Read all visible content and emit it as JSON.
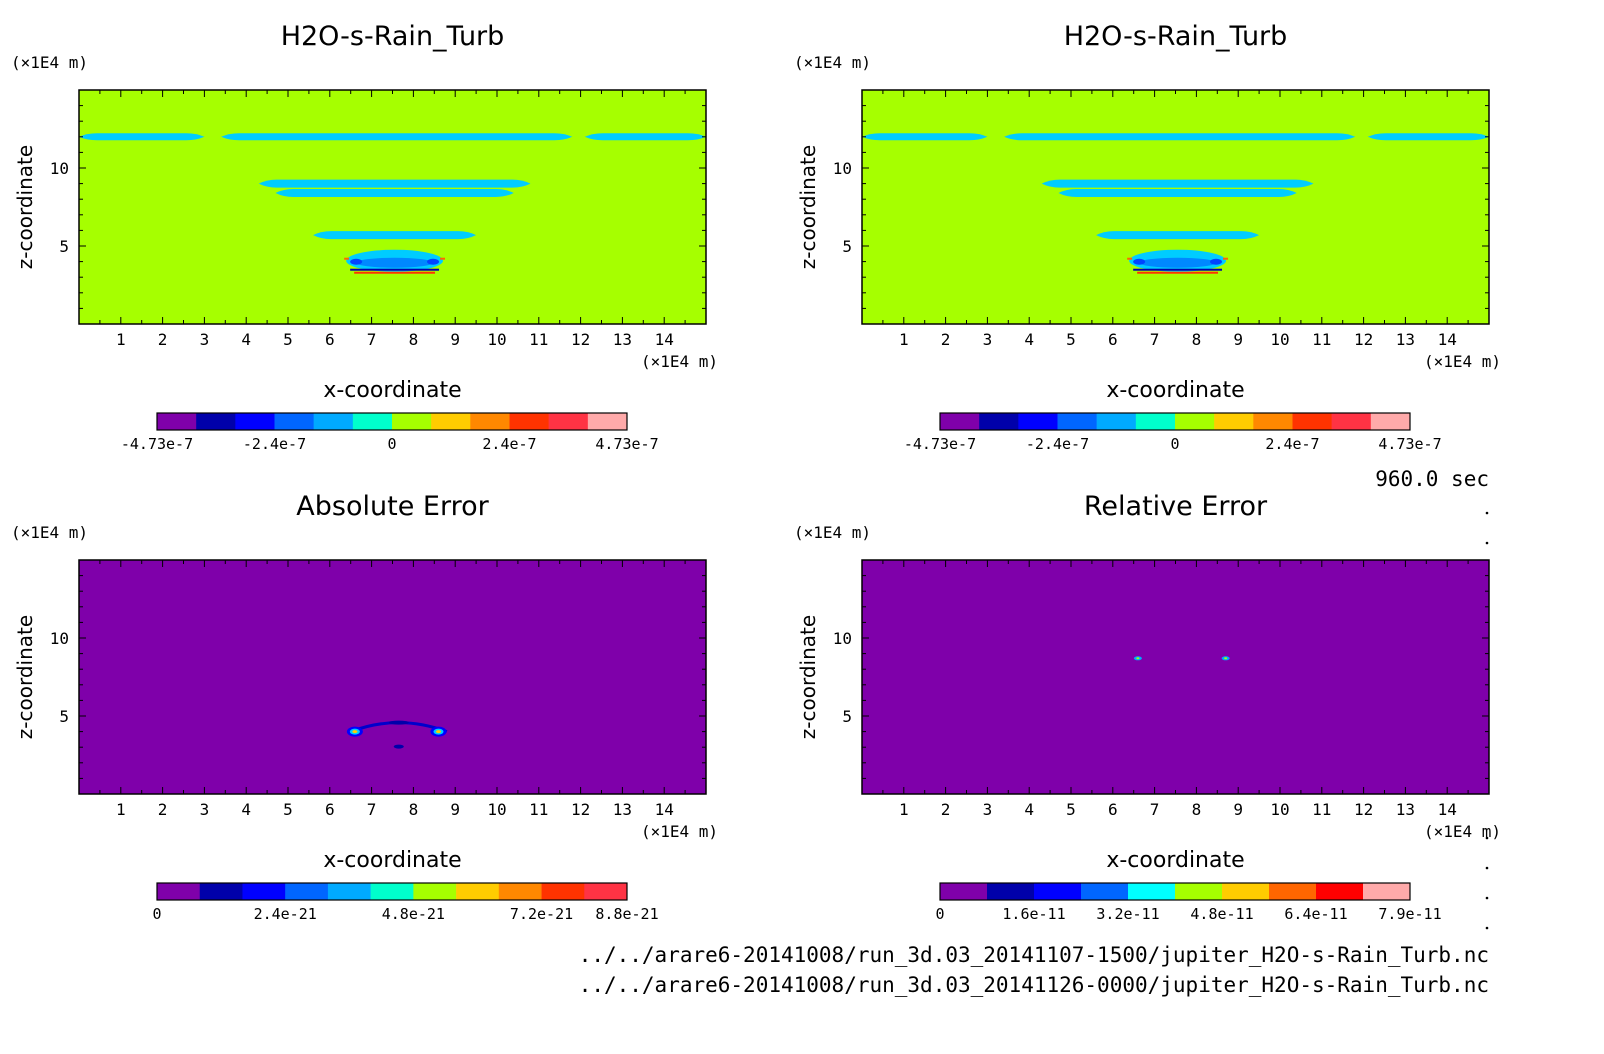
{
  "time_label": "960.0 sec",
  "file_paths": [
    "../../arare6-20141008/run_3d.03_20141107-1500/jupiter_H2O-s-Rain_Turb.nc",
    "../../arare6-20141008/run_3d.03_20141126-0000/jupiter_H2O-s-Rain_Turb.nc"
  ],
  "colors": {
    "background_field": "#a6ff00",
    "cyan_band": "#00ccff",
    "error_background": "#7f00aa"
  },
  "chart_data": [
    {
      "type": "heatmap",
      "title": "H2O-s-Rain_Turb",
      "xlabel": "x-coordinate",
      "ylabel": "z-coordinate",
      "xunit": "(×1E4 m)",
      "yunit": "(×1E4 m)",
      "xlim": [
        0,
        15
      ],
      "ylim": [
        0,
        15
      ],
      "xticks": [
        "1",
        "2",
        "3",
        "4",
        "5",
        "6",
        "7",
        "8",
        "9",
        "10",
        "11",
        "12",
        "13",
        "14"
      ],
      "yticks": [
        "5",
        "10"
      ],
      "colorbar": {
        "colors": [
          "#7f00aa",
          "#0000aa",
          "#0000ff",
          "#0066ff",
          "#00aaff",
          "#00ffcc",
          "#a6ff00",
          "#ffcc00",
          "#ff8800",
          "#ff3300",
          "#ff3344",
          "#ffaaaa"
        ],
        "tick_labels": [
          "-4.73e-7",
          "-2.4e-7",
          "0",
          "2.4e-7",
          "4.73e-7"
        ],
        "tick_positions": [
          0,
          3,
          6,
          9,
          12
        ]
      },
      "features": [
        {
          "z": 12.0,
          "x_start": 0.0,
          "x_end": 3.0,
          "value": "negative"
        },
        {
          "z": 12.0,
          "x_start": 3.4,
          "x_end": 11.8,
          "value": "negative"
        },
        {
          "z": 12.0,
          "x_start": 12.1,
          "x_end": 15.0,
          "value": "negative"
        },
        {
          "z": 9.0,
          "x_start": 4.3,
          "x_end": 10.8,
          "value": "negative"
        },
        {
          "z": 8.4,
          "x_start": 4.7,
          "x_end": 10.4,
          "value": "negative"
        },
        {
          "z": 5.7,
          "x_start": 5.6,
          "x_end": 9.5,
          "value": "negative"
        },
        {
          "z": 3.8,
          "x_start": 6.2,
          "x_end": 8.9,
          "value": "mixed"
        }
      ]
    },
    {
      "type": "heatmap",
      "title": "H2O-s-Rain_Turb",
      "xlabel": "x-coordinate",
      "ylabel": "z-coordinate",
      "xunit": "(×1E4 m)",
      "yunit": "(×1E4 m)",
      "xlim": [
        0,
        15
      ],
      "ylim": [
        0,
        15
      ],
      "xticks": [
        "1",
        "2",
        "3",
        "4",
        "5",
        "6",
        "7",
        "8",
        "9",
        "10",
        "11",
        "12",
        "13",
        "14"
      ],
      "yticks": [
        "5",
        "10"
      ],
      "colorbar": {
        "colors": [
          "#7f00aa",
          "#0000aa",
          "#0000ff",
          "#0066ff",
          "#00aaff",
          "#00ffcc",
          "#a6ff00",
          "#ffcc00",
          "#ff8800",
          "#ff3300",
          "#ff3344",
          "#ffaaaa"
        ],
        "tick_labels": [
          "-4.73e-7",
          "-2.4e-7",
          "0",
          "2.4e-7",
          "4.73e-7"
        ],
        "tick_positions": [
          0,
          3,
          6,
          9,
          12
        ]
      },
      "features": [
        {
          "z": 12.0,
          "x_start": 0.0,
          "x_end": 3.0,
          "value": "negative"
        },
        {
          "z": 12.0,
          "x_start": 3.4,
          "x_end": 11.8,
          "value": "negative"
        },
        {
          "z": 12.0,
          "x_start": 12.1,
          "x_end": 15.0,
          "value": "negative"
        },
        {
          "z": 9.0,
          "x_start": 4.3,
          "x_end": 10.8,
          "value": "negative"
        },
        {
          "z": 8.4,
          "x_start": 4.7,
          "x_end": 10.4,
          "value": "negative"
        },
        {
          "z": 5.7,
          "x_start": 5.6,
          "x_end": 9.5,
          "value": "negative"
        },
        {
          "z": 3.8,
          "x_start": 6.2,
          "x_end": 8.9,
          "value": "mixed"
        }
      ]
    },
    {
      "type": "heatmap",
      "title": "Absolute Error",
      "xlabel": "x-coordinate",
      "ylabel": "z-coordinate",
      "xunit": "(×1E4 m)",
      "yunit": "(×1E4 m)",
      "xlim": [
        0,
        15
      ],
      "ylim": [
        0,
        15
      ],
      "xticks": [
        "1",
        "2",
        "3",
        "4",
        "5",
        "6",
        "7",
        "8",
        "9",
        "10",
        "11",
        "12",
        "13",
        "14"
      ],
      "yticks": [
        "5",
        "10"
      ],
      "colorbar": {
        "colors": [
          "#7f00aa",
          "#0000aa",
          "#0000ff",
          "#0066ff",
          "#00aaff",
          "#00ffcc",
          "#a6ff00",
          "#ffcc00",
          "#ff8800",
          "#ff3300",
          "#ff3344"
        ],
        "tick_labels": [
          "0",
          "2.4e-21",
          "4.8e-21",
          "7.2e-21",
          "8.8e-21"
        ],
        "tick_positions": [
          0,
          3,
          6,
          9,
          11
        ]
      },
      "features": [
        {
          "z": 4.0,
          "x_start": 6.5,
          "x_end": 8.8,
          "value": "low"
        },
        {
          "z": 4.0,
          "x": 6.6,
          "value": "hotspot"
        },
        {
          "z": 4.0,
          "x": 8.6,
          "value": "hotspot"
        }
      ]
    },
    {
      "type": "heatmap",
      "title": "Relative Error",
      "xlabel": "x-coordinate",
      "ylabel": "z-coordinate",
      "xunit": "(×1E4 m)",
      "yunit": "(×1E4 m)",
      "xlim": [
        0,
        15
      ],
      "ylim": [
        0,
        15
      ],
      "xticks": [
        "1",
        "2",
        "3",
        "4",
        "5",
        "6",
        "7",
        "8",
        "9",
        "10",
        "11",
        "12",
        "13",
        "14"
      ],
      "yticks": [
        "5",
        "10"
      ],
      "colorbar": {
        "colors": [
          "#7f00aa",
          "#0000aa",
          "#0000ff",
          "#0066ff",
          "#00ffff",
          "#a6ff00",
          "#ffcc00",
          "#ff6600",
          "#ff0000",
          "#ffaaaa"
        ],
        "tick_labels": [
          "0",
          "1.6e-11",
          "3.2e-11",
          "4.8e-11",
          "6.4e-11",
          "7.9e-11"
        ],
        "tick_positions": [
          0,
          2,
          4,
          6,
          8,
          10
        ]
      },
      "features": [
        {
          "z": 8.7,
          "x": 6.6,
          "value": "spot"
        },
        {
          "z": 8.7,
          "x": 8.7,
          "value": "spot"
        }
      ]
    }
  ]
}
